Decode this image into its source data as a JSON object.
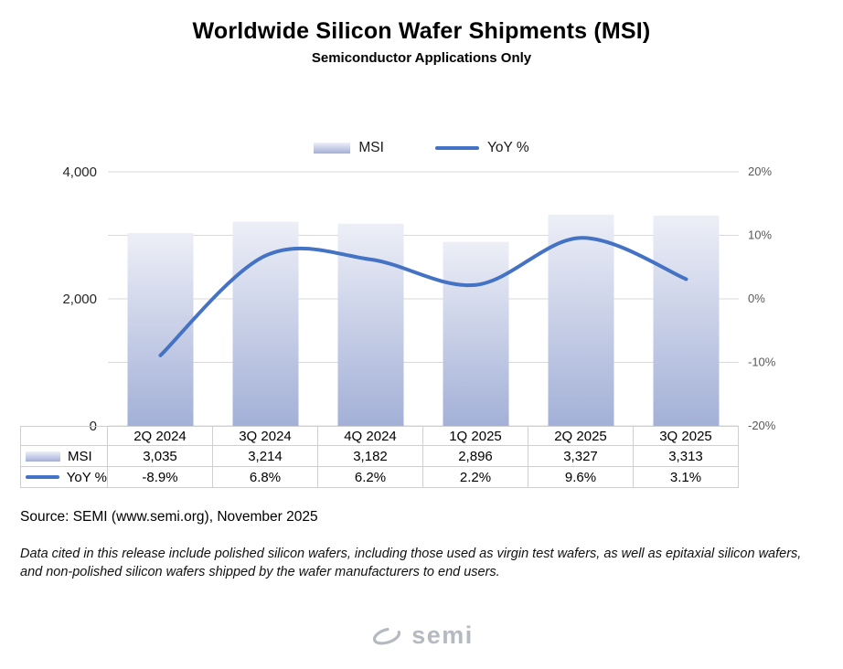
{
  "header": {
    "title": "Worldwide Silicon Wafer Shipments (MSI)",
    "subtitle": "Semiconductor Applications Only"
  },
  "legend": {
    "msi_label": "MSI",
    "yoy_label": "YoY %"
  },
  "chart_data": {
    "type": "bar+line combo",
    "categories": [
      "2Q 2024",
      "3Q 2024",
      "4Q 2024",
      "1Q 2025",
      "2Q 2025",
      "3Q 2025"
    ],
    "series": [
      {
        "name": "MSI",
        "type": "bar",
        "axis": "left",
        "values": [
          3035,
          3214,
          3182,
          2896,
          3327,
          3313
        ]
      },
      {
        "name": "YoY %",
        "type": "line",
        "axis": "right",
        "values": [
          -8.9,
          6.8,
          6.2,
          2.2,
          9.6,
          3.1
        ]
      }
    ],
    "left_axis": {
      "min": 0,
      "max": 4000,
      "ticks": [
        0,
        2000,
        4000
      ],
      "tick_labels": [
        "0",
        "2,000",
        "4,000"
      ]
    },
    "right_axis": {
      "min": -20,
      "max": 20,
      "ticks": [
        -20,
        -10,
        0,
        10,
        20
      ],
      "tick_labels": [
        "-20%",
        "-10%",
        "0%",
        "10%",
        "20%"
      ]
    },
    "grid": true,
    "legend_position": "top",
    "colors": {
      "bar_top": "#edeff7",
      "bar_bottom": "#a3b0d7",
      "line": "#4472c4",
      "grid": "#d9d9d9",
      "left_tick_text": "#262626",
      "right_tick_text": "#595959"
    }
  },
  "table": {
    "rows": [
      {
        "label": "MSI",
        "values": [
          "3,035",
          "3,214",
          "3,182",
          "2,896",
          "3,327",
          "3,313"
        ]
      },
      {
        "label": "YoY %",
        "values": [
          "-8.9%",
          "6.8%",
          "6.2%",
          "2.2%",
          "9.6%",
          "3.1%"
        ]
      }
    ]
  },
  "footer": {
    "source": "Source: SEMI (www.semi.org), November 2025",
    "note": "Data cited in this release include polished silicon wafers, including those used as virgin test wafers, as well as epitaxial silicon wafers, and non-polished silicon wafers shipped by the wafer manufacturers to end users.",
    "logo_text": "semi"
  }
}
